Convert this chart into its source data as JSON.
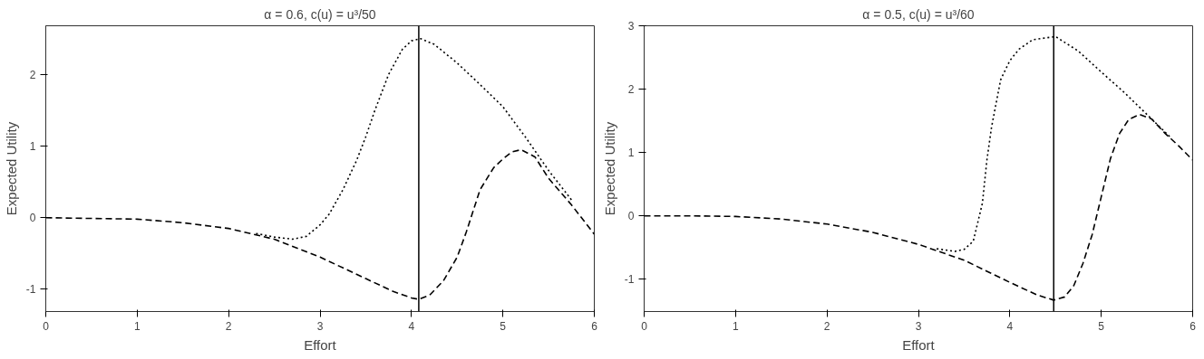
{
  "chart_data": [
    {
      "type": "line",
      "title": "α = 0.6, c(u) = u³/50",
      "xlabel": "Effort",
      "ylabel": "Expected Utility",
      "xlim": [
        0,
        6
      ],
      "ylim": [
        -1.31,
        2.68
      ],
      "xticks": [
        0,
        1,
        2,
        3,
        4,
        5,
        6
      ],
      "yticks": [
        -1,
        0,
        1,
        2
      ],
      "grid": false,
      "series": [
        {
          "color": "#000000",
          "line_style": "dotted",
          "x": [
            2.3,
            2.5,
            2.7,
            2.85,
            3.0,
            3.1,
            3.25,
            3.4,
            3.5,
            3.6,
            3.75,
            3.9,
            4.0,
            4.1,
            4.25,
            4.5,
            4.75,
            5.0,
            5.25,
            5.5,
            5.75
          ],
          "values": [
            -0.22,
            -0.27,
            -0.3,
            -0.26,
            -0.1,
            0.05,
            0.39,
            0.8,
            1.13,
            1.5,
            2.0,
            2.35,
            2.47,
            2.5,
            2.42,
            2.16,
            1.86,
            1.55,
            1.12,
            0.66,
            0.25
          ]
        },
        {
          "color": "#000000",
          "line_style": "dashed",
          "x": [
            0,
            0.5,
            1,
            1.5,
            2,
            2.5,
            3,
            3.5,
            3.8,
            4.0,
            4.08,
            4.2,
            4.35,
            4.5,
            4.6,
            4.75,
            4.9,
            5.0,
            5.1,
            5.2,
            5.35,
            5.5,
            5.75,
            6.0
          ],
          "values": [
            0,
            -0.01,
            -0.02,
            -0.07,
            -0.15,
            -0.3,
            -0.55,
            -0.85,
            -1.03,
            -1.12,
            -1.14,
            -1.08,
            -0.88,
            -0.55,
            -0.2,
            0.39,
            0.7,
            0.82,
            0.92,
            0.95,
            0.85,
            0.55,
            0.18,
            -0.23
          ]
        }
      ],
      "ref_lines": [
        {
          "axis": "x",
          "value": 4.08,
          "color": "#000000",
          "line_style": "solid"
        }
      ]
    },
    {
      "type": "line",
      "title": "α = 0.5, c(u) = u³/60",
      "xlabel": "Effort",
      "ylabel": "Expected Utility",
      "xlim": [
        0,
        6
      ],
      "ylim": [
        -1.51,
        3.0
      ],
      "xticks": [
        0,
        1,
        2,
        3,
        4,
        5,
        6
      ],
      "yticks": [
        -1,
        0,
        1,
        2,
        3
      ],
      "grid": false,
      "series": [
        {
          "color": "#000000",
          "line_style": "dotted",
          "x": [
            3.2,
            3.4,
            3.5,
            3.6,
            3.7,
            3.75,
            3.8,
            3.9,
            4.0,
            4.1,
            4.25,
            4.5,
            4.75,
            5.0,
            5.25,
            5.5,
            5.75
          ],
          "values": [
            -0.52,
            -0.56,
            -0.53,
            -0.4,
            0.2,
            0.89,
            1.4,
            2.15,
            2.45,
            2.63,
            2.78,
            2.83,
            2.6,
            2.27,
            1.95,
            1.6,
            1.25
          ]
        },
        {
          "color": "#000000",
          "line_style": "dashed",
          "x": [
            0,
            0.5,
            1,
            1.5,
            2,
            2.5,
            3,
            3.5,
            4,
            4.3,
            4.48,
            4.6,
            4.7,
            4.8,
            4.9,
            5.0,
            5.1,
            5.2,
            5.3,
            5.42,
            5.55,
            5.7,
            5.85,
            6.0
          ],
          "values": [
            0,
            0,
            -0.01,
            -0.05,
            -0.13,
            -0.26,
            -0.45,
            -0.7,
            -1.05,
            -1.25,
            -1.33,
            -1.28,
            -1.1,
            -0.75,
            -0.3,
            0.3,
            0.9,
            1.3,
            1.52,
            1.6,
            1.53,
            1.3,
            1.1,
            0.88
          ]
        }
      ],
      "ref_lines": [
        {
          "axis": "x",
          "value": 4.48,
          "color": "#000000",
          "line_style": "solid"
        }
      ]
    }
  ]
}
